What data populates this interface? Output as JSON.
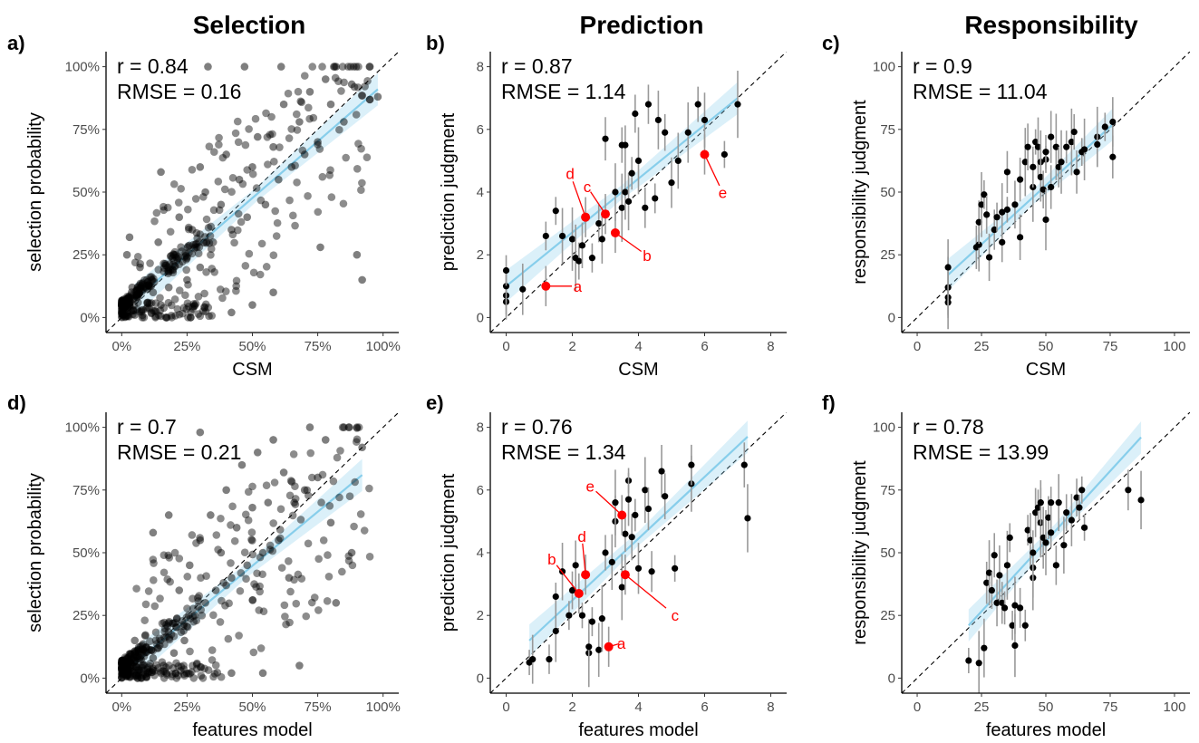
{
  "column_titles": [
    "Selection",
    "Prediction",
    "Responsibility"
  ],
  "chart_data": [
    {
      "panel": "a)",
      "type": "scatter",
      "title": "Selection",
      "xlabel": "CSM",
      "ylabel": "selection probability",
      "xticks": [
        "0%",
        "25%",
        "50%",
        "75%",
        "100%"
      ],
      "yticks": [
        "0%",
        "25%",
        "50%",
        "75%",
        "100%"
      ],
      "xlim": [
        0,
        1
      ],
      "ylim": [
        0,
        1
      ],
      "scale": "percent",
      "stats": [
        "r = 0.84",
        "RMSE = 0.16"
      ],
      "fit": {
        "x": [
          0.05,
          0.98
        ],
        "y": [
          0.07,
          0.91
        ]
      },
      "cluster": {
        "x_mean": 0.25,
        "slope": 0.87,
        "intercept": 0.05,
        "noise": 0.18,
        "low_mass": 0.35
      },
      "points": [
        [
          0.02,
          0.02
        ],
        [
          0.03,
          0.05
        ],
        [
          0.05,
          0.01
        ],
        [
          0.06,
          0.08
        ],
        [
          0.08,
          0.03
        ],
        [
          0.04,
          0.12
        ],
        [
          0.1,
          0.06
        ],
        [
          0.12,
          0.1
        ],
        [
          0.07,
          0.2
        ],
        [
          0.15,
          0.05
        ],
        [
          0.02,
          0.25
        ],
        [
          0.03,
          0.32
        ],
        [
          0.14,
          0.3
        ],
        [
          0.18,
          0.12
        ],
        [
          0.2,
          0.25
        ],
        [
          0.22,
          0.4
        ],
        [
          0.25,
          0.15
        ],
        [
          0.27,
          0.35
        ],
        [
          0.3,
          0.2
        ],
        [
          0.32,
          0.5
        ],
        [
          0.35,
          0.3
        ],
        [
          0.38,
          0.45
        ],
        [
          0.4,
          0.65
        ],
        [
          0.42,
          0.35
        ],
        [
          0.45,
          0.55
        ],
        [
          0.48,
          0.4
        ],
        [
          0.5,
          0.6
        ],
        [
          0.52,
          0.72
        ],
        [
          0.55,
          0.45
        ],
        [
          0.58,
          0.68
        ],
        [
          0.6,
          0.55
        ],
        [
          0.62,
          0.85
        ],
        [
          0.65,
          0.6
        ],
        [
          0.68,
          0.78
        ],
        [
          0.7,
          0.65
        ],
        [
          0.72,
          0.9
        ],
        [
          0.75,
          0.7
        ],
        [
          0.78,
          0.95
        ],
        [
          0.8,
          0.85
        ],
        [
          0.82,
          1.0
        ],
        [
          0.85,
          0.78
        ],
        [
          0.88,
          0.93
        ],
        [
          0.9,
          0.25
        ],
        [
          0.92,
          0.15
        ],
        [
          0.98,
          0.88
        ],
        [
          0.33,
          1.0
        ],
        [
          0.47,
          1.0
        ],
        [
          0.61,
          1.0
        ],
        [
          0.76,
          0.28
        ],
        [
          0.58,
          0.1
        ],
        [
          0.5,
          0.05
        ],
        [
          0.42,
          0.02
        ],
        [
          0.3,
          0.6
        ],
        [
          0.15,
          0.58
        ]
      ]
    },
    {
      "panel": "b)",
      "type": "scatter",
      "title": "Prediction",
      "xlabel": "CSM",
      "ylabel": "prediction judgment",
      "xticks": [
        "0",
        "2",
        "4",
        "6",
        "8"
      ],
      "yticks": [
        "0",
        "2",
        "4",
        "6",
        "8"
      ],
      "xlim": [
        0,
        8
      ],
      "ylim": [
        0,
        8
      ],
      "stats": [
        "r = 0.87",
        "RMSE = 1.14"
      ],
      "fit": {
        "x": [
          0,
          7
        ],
        "y": [
          1.0,
          7.0
        ]
      },
      "points": [
        [
          0,
          0.5
        ],
        [
          0,
          0.7
        ],
        [
          0,
          1.0
        ],
        [
          0,
          1.5
        ],
        [
          0.5,
          0.9
        ],
        [
          1.2,
          2.6
        ],
        [
          1.5,
          3.4
        ],
        [
          1.7,
          2.6
        ],
        [
          2.0,
          2.5
        ],
        [
          2.1,
          1.9
        ],
        [
          2.2,
          1.8
        ],
        [
          2.3,
          2.3
        ],
        [
          2.6,
          1.9
        ],
        [
          2.8,
          3.0
        ],
        [
          2.9,
          2.5
        ],
        [
          3.0,
          5.7
        ],
        [
          3.3,
          4.0
        ],
        [
          3.5,
          3.5
        ],
        [
          3.5,
          5.5
        ],
        [
          3.6,
          4.0
        ],
        [
          3.6,
          5.5
        ],
        [
          3.7,
          3.7
        ],
        [
          3.8,
          4.6
        ],
        [
          3.9,
          6.5
        ],
        [
          4.0,
          5.0
        ],
        [
          4.2,
          3.5
        ],
        [
          4.3,
          6.8
        ],
        [
          4.5,
          3.8
        ],
        [
          4.6,
          6.3
        ],
        [
          4.8,
          5.9
        ],
        [
          5.0,
          4.3
        ],
        [
          5.2,
          5.0
        ],
        [
          5.5,
          5.9
        ],
        [
          5.8,
          6.8
        ],
        [
          6.0,
          6.3
        ],
        [
          6.6,
          5.2
        ],
        [
          7.0,
          6.8
        ]
      ],
      "highlighted": [
        {
          "label": "a",
          "x": 1.2,
          "y": 1.0
        },
        {
          "label": "b",
          "x": 3.3,
          "y": 2.7
        },
        {
          "label": "c",
          "x": 3.0,
          "y": 3.3
        },
        {
          "label": "d",
          "x": 2.4,
          "y": 3.2
        },
        {
          "label": "e",
          "x": 6.0,
          "y": 5.2
        }
      ]
    },
    {
      "panel": "c)",
      "type": "scatter",
      "title": "Responsibility",
      "xlabel": "CSM",
      "ylabel": "responsibility judgment",
      "xticks": [
        "0",
        "25",
        "50",
        "75",
        "100"
      ],
      "yticks": [
        "0",
        "25",
        "50",
        "75",
        "100"
      ],
      "xlim": [
        0,
        100
      ],
      "ylim": [
        0,
        100
      ],
      "stats": [
        "r = 0.9",
        "RMSE = 11.04"
      ],
      "fit": {
        "x": [
          12,
          76
        ],
        "y": [
          17,
          77
        ]
      },
      "points": [
        [
          12,
          6
        ],
        [
          12,
          8
        ],
        [
          12,
          12
        ],
        [
          12,
          20
        ],
        [
          23,
          28
        ],
        [
          24,
          29
        ],
        [
          24,
          38
        ],
        [
          25,
          45
        ],
        [
          26,
          49
        ],
        [
          27,
          41
        ],
        [
          28,
          24
        ],
        [
          30,
          35
        ],
        [
          31,
          40
        ],
        [
          33,
          42
        ],
        [
          33,
          30
        ],
        [
          35,
          43
        ],
        [
          35,
          58
        ],
        [
          38,
          45
        ],
        [
          40,
          32
        ],
        [
          40,
          55
        ],
        [
          42,
          62
        ],
        [
          43,
          68
        ],
        [
          45,
          52
        ],
        [
          45,
          60
        ],
        [
          46,
          70
        ],
        [
          47,
          68
        ],
        [
          48,
          62
        ],
        [
          48,
          56
        ],
        [
          49,
          51
        ],
        [
          50,
          63
        ],
        [
          50,
          66
        ],
        [
          50,
          39
        ],
        [
          52,
          52
        ],
        [
          52,
          72
        ],
        [
          54,
          68
        ],
        [
          55,
          60
        ],
        [
          56,
          62
        ],
        [
          58,
          68
        ],
        [
          60,
          70
        ],
        [
          61,
          74
        ],
        [
          62,
          58
        ],
        [
          64,
          66
        ],
        [
          65,
          67
        ],
        [
          70,
          72
        ],
        [
          70,
          69
        ],
        [
          73,
          76
        ],
        [
          76,
          64
        ],
        [
          76,
          78
        ]
      ]
    },
    {
      "panel": "d)",
      "type": "scatter",
      "xlabel": "features model",
      "ylabel": "selection probability",
      "xticks": [
        "0%",
        "25%",
        "50%",
        "75%",
        "100%"
      ],
      "yticks": [
        "0%",
        "25%",
        "50%",
        "75%",
        "100%"
      ],
      "xlim": [
        0,
        1
      ],
      "ylim": [
        0,
        1
      ],
      "scale": "percent",
      "stats": [
        "r = 0.7",
        "RMSE = 0.21"
      ],
      "fit": {
        "x": [
          0.05,
          0.92
        ],
        "y": [
          0.06,
          0.81
        ]
      },
      "cluster": {
        "x_mean": 0.22,
        "slope": 0.75,
        "intercept": 0.05,
        "noise": 0.22,
        "low_mass": 0.4
      },
      "points": [
        [
          0.02,
          0.01
        ],
        [
          0.04,
          0.03
        ],
        [
          0.06,
          0.02
        ],
        [
          0.08,
          0.05
        ],
        [
          0.1,
          0.02
        ],
        [
          0.12,
          0.08
        ],
        [
          0.05,
          0.15
        ],
        [
          0.14,
          0.12
        ],
        [
          0.16,
          0.05
        ],
        [
          0.18,
          0.22
        ],
        [
          0.2,
          0.1
        ],
        [
          0.22,
          0.35
        ],
        [
          0.24,
          0.15
        ],
        [
          0.26,
          0.45
        ],
        [
          0.28,
          0.25
        ],
        [
          0.3,
          0.55
        ],
        [
          0.32,
          0.3
        ],
        [
          0.34,
          0.65
        ],
        [
          0.36,
          0.35
        ],
        [
          0.38,
          0.5
        ],
        [
          0.4,
          0.75
        ],
        [
          0.42,
          0.4
        ],
        [
          0.44,
          0.6
        ],
        [
          0.46,
          0.85
        ],
        [
          0.48,
          0.45
        ],
        [
          0.5,
          0.68
        ],
        [
          0.52,
          0.9
        ],
        [
          0.54,
          0.5
        ],
        [
          0.56,
          0.7
        ],
        [
          0.58,
          0.95
        ],
        [
          0.6,
          0.55
        ],
        [
          0.62,
          0.82
        ],
        [
          0.64,
          0.4
        ],
        [
          0.66,
          0.7
        ],
        [
          0.68,
          0.05
        ],
        [
          0.7,
          0.75
        ],
        [
          0.72,
          1.0
        ],
        [
          0.75,
          0.8
        ],
        [
          0.78,
          0.95
        ],
        [
          0.8,
          0.62
        ],
        [
          0.82,
          0.3
        ],
        [
          0.85,
          1.0
        ],
        [
          0.88,
          0.5
        ],
        [
          0.9,
          1.0
        ],
        [
          0.92,
          0.92
        ],
        [
          0.42,
          0.02
        ],
        [
          0.54,
          0.02
        ],
        [
          0.3,
          0.98
        ],
        [
          0.18,
          0.65
        ],
        [
          0.12,
          0.58
        ]
      ]
    },
    {
      "panel": "e)",
      "type": "scatter",
      "xlabel": "features model",
      "ylabel": "prediction judgment",
      "xticks": [
        "0",
        "2",
        "4",
        "6",
        "8"
      ],
      "yticks": [
        "0",
        "2",
        "4",
        "6",
        "8"
      ],
      "xlim": [
        0,
        8
      ],
      "ylim": [
        0,
        8
      ],
      "stats": [
        "r = 0.76",
        "RMSE = 1.34"
      ],
      "fit": {
        "x": [
          0.7,
          7.3
        ],
        "y": [
          1.2,
          7.7
        ]
      },
      "points": [
        [
          0.7,
          0.5
        ],
        [
          0.8,
          0.6
        ],
        [
          1.3,
          0.6
        ],
        [
          1.5,
          1.5
        ],
        [
          1.5,
          2.6
        ],
        [
          1.7,
          3.4
        ],
        [
          1.9,
          2.0
        ],
        [
          2.0,
          2.8
        ],
        [
          2.1,
          3.6
        ],
        [
          2.3,
          2.0
        ],
        [
          2.5,
          0.8
        ],
        [
          2.5,
          1.0
        ],
        [
          2.6,
          1.8
        ],
        [
          2.8,
          0.9
        ],
        [
          2.9,
          1.9
        ],
        [
          3.0,
          4.0
        ],
        [
          3.2,
          3.7
        ],
        [
          3.3,
          5.0
        ],
        [
          3.3,
          5.6
        ],
        [
          3.5,
          2.9
        ],
        [
          3.6,
          4.6
        ],
        [
          3.7,
          6.3
        ],
        [
          3.7,
          5.7
        ],
        [
          3.8,
          4.5
        ],
        [
          3.9,
          5.2
        ],
        [
          4.0,
          3.5
        ],
        [
          4.2,
          6.0
        ],
        [
          4.3,
          5.4
        ],
        [
          4.4,
          3.4
        ],
        [
          4.7,
          6.6
        ],
        [
          4.8,
          5.8
        ],
        [
          5.1,
          3.5
        ],
        [
          5.6,
          6.2
        ],
        [
          5.6,
          6.8
        ],
        [
          7.2,
          6.8
        ],
        [
          7.3,
          5.1
        ]
      ],
      "highlighted": [
        {
          "label": "a",
          "x": 3.1,
          "y": 1.0
        },
        {
          "label": "b",
          "x": 2.2,
          "y": 2.7
        },
        {
          "label": "c",
          "x": 3.6,
          "y": 3.3
        },
        {
          "label": "d",
          "x": 2.4,
          "y": 3.3
        },
        {
          "label": "e",
          "x": 3.5,
          "y": 5.2
        }
      ]
    },
    {
      "panel": "f)",
      "type": "scatter",
      "xlabel": "features model",
      "ylabel": "responsibility judgment",
      "xticks": [
        "0",
        "25",
        "50",
        "75",
        "100"
      ],
      "yticks": [
        "0",
        "25",
        "50",
        "75",
        "100"
      ],
      "xlim": [
        0,
        100
      ],
      "ylim": [
        0,
        100
      ],
      "stats": [
        "r = 0.78",
        "RMSE = 13.99"
      ],
      "fit": {
        "x": [
          20,
          87
        ],
        "y": [
          21,
          96
        ]
      },
      "points": [
        [
          20,
          7
        ],
        [
          24,
          6
        ],
        [
          26,
          12
        ],
        [
          27,
          38
        ],
        [
          28,
          42
        ],
        [
          29,
          35
        ],
        [
          30,
          49
        ],
        [
          31,
          30
        ],
        [
          32,
          41
        ],
        [
          33,
          30
        ],
        [
          34,
          28
        ],
        [
          35,
          45
        ],
        [
          36,
          56
        ],
        [
          37,
          21
        ],
        [
          38,
          29
        ],
        [
          38,
          13
        ],
        [
          40,
          28
        ],
        [
          42,
          21
        ],
        [
          43,
          59
        ],
        [
          44,
          55
        ],
        [
          45,
          40
        ],
        [
          45,
          44
        ],
        [
          45,
          50
        ],
        [
          46,
          66
        ],
        [
          47,
          68
        ],
        [
          48,
          62
        ],
        [
          48,
          70
        ],
        [
          49,
          56
        ],
        [
          50,
          54
        ],
        [
          51,
          64
        ],
        [
          52,
          58
        ],
        [
          52,
          70
        ],
        [
          54,
          45
        ],
        [
          55,
          70
        ],
        [
          57,
          53
        ],
        [
          58,
          66
        ],
        [
          60,
          63
        ],
        [
          62,
          72
        ],
        [
          63,
          68
        ],
        [
          64,
          75
        ],
        [
          65,
          60
        ],
        [
          82,
          75
        ],
        [
          87,
          71
        ]
      ]
    }
  ]
}
